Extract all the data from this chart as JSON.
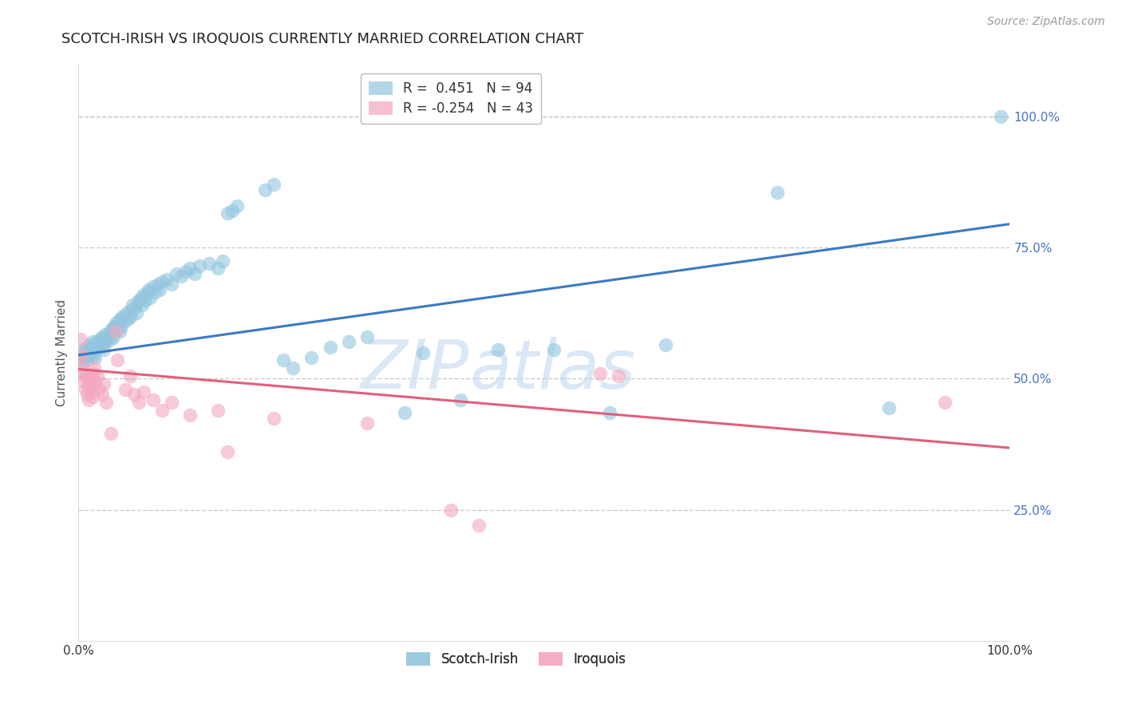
{
  "title": "SCOTCH-IRISH VS IROQUOIS CURRENTLY MARRIED CORRELATION CHART",
  "source": "Source: ZipAtlas.com",
  "ylabel": "Currently Married",
  "watermark_zip": "ZIP",
  "watermark_atlas": "atlas",
  "xlim": [
    0,
    1
  ],
  "ylim": [
    0,
    1.1
  ],
  "y_ticks": [
    0.25,
    0.5,
    0.75,
    1.0
  ],
  "y_tick_labels": [
    "25.0%",
    "50.0%",
    "75.0%",
    "100.0%"
  ],
  "blue_color": "#92c5de",
  "pink_color": "#f4a6c0",
  "blue_line_color": "#3b79c3",
  "pink_line_color": "#e0607e",
  "blue_line_y0": 0.545,
  "blue_line_y1": 0.795,
  "pink_line_y0": 0.518,
  "pink_line_y1": 0.368,
  "R_blue": 0.451,
  "N_blue": 94,
  "R_pink": -0.254,
  "N_pink": 43,
  "legend_blue_label": "Scotch-Irish",
  "legend_pink_label": "Iroquois",
  "blue_scatter": [
    [
      0.002,
      0.535
    ],
    [
      0.003,
      0.545
    ],
    [
      0.004,
      0.53
    ],
    [
      0.005,
      0.555
    ],
    [
      0.006,
      0.54
    ],
    [
      0.007,
      0.55
    ],
    [
      0.008,
      0.56
    ],
    [
      0.009,
      0.535
    ],
    [
      0.01,
      0.545
    ],
    [
      0.011,
      0.555
    ],
    [
      0.012,
      0.565
    ],
    [
      0.013,
      0.55
    ],
    [
      0.014,
      0.56
    ],
    [
      0.015,
      0.57
    ],
    [
      0.016,
      0.545
    ],
    [
      0.017,
      0.555
    ],
    [
      0.018,
      0.54
    ],
    [
      0.019,
      0.56
    ],
    [
      0.02,
      0.57
    ],
    [
      0.022,
      0.565
    ],
    [
      0.023,
      0.575
    ],
    [
      0.024,
      0.56
    ],
    [
      0.025,
      0.58
    ],
    [
      0.026,
      0.57
    ],
    [
      0.027,
      0.555
    ],
    [
      0.028,
      0.575
    ],
    [
      0.029,
      0.585
    ],
    [
      0.03,
      0.57
    ],
    [
      0.032,
      0.58
    ],
    [
      0.034,
      0.59
    ],
    [
      0.035,
      0.575
    ],
    [
      0.036,
      0.595
    ],
    [
      0.037,
      0.58
    ],
    [
      0.038,
      0.6
    ],
    [
      0.04,
      0.605
    ],
    [
      0.042,
      0.595
    ],
    [
      0.043,
      0.61
    ],
    [
      0.044,
      0.59
    ],
    [
      0.045,
      0.615
    ],
    [
      0.046,
      0.6
    ],
    [
      0.048,
      0.62
    ],
    [
      0.05,
      0.61
    ],
    [
      0.052,
      0.625
    ],
    [
      0.054,
      0.615
    ],
    [
      0.055,
      0.63
    ],
    [
      0.056,
      0.62
    ],
    [
      0.058,
      0.64
    ],
    [
      0.06,
      0.635
    ],
    [
      0.062,
      0.625
    ],
    [
      0.064,
      0.645
    ],
    [
      0.065,
      0.65
    ],
    [
      0.067,
      0.655
    ],
    [
      0.068,
      0.64
    ],
    [
      0.07,
      0.66
    ],
    [
      0.072,
      0.65
    ],
    [
      0.074,
      0.665
    ],
    [
      0.075,
      0.67
    ],
    [
      0.077,
      0.655
    ],
    [
      0.08,
      0.675
    ],
    [
      0.082,
      0.665
    ],
    [
      0.085,
      0.68
    ],
    [
      0.087,
      0.67
    ],
    [
      0.09,
      0.685
    ],
    [
      0.095,
      0.69
    ],
    [
      0.1,
      0.68
    ],
    [
      0.105,
      0.7
    ],
    [
      0.11,
      0.695
    ],
    [
      0.115,
      0.705
    ],
    [
      0.12,
      0.71
    ],
    [
      0.125,
      0.7
    ],
    [
      0.13,
      0.715
    ],
    [
      0.14,
      0.72
    ],
    [
      0.15,
      0.71
    ],
    [
      0.155,
      0.725
    ],
    [
      0.16,
      0.815
    ],
    [
      0.165,
      0.82
    ],
    [
      0.17,
      0.83
    ],
    [
      0.2,
      0.86
    ],
    [
      0.21,
      0.87
    ],
    [
      0.22,
      0.535
    ],
    [
      0.23,
      0.52
    ],
    [
      0.25,
      0.54
    ],
    [
      0.27,
      0.56
    ],
    [
      0.29,
      0.57
    ],
    [
      0.31,
      0.58
    ],
    [
      0.35,
      0.435
    ],
    [
      0.37,
      0.55
    ],
    [
      0.41,
      0.46
    ],
    [
      0.45,
      0.555
    ],
    [
      0.51,
      0.555
    ],
    [
      0.57,
      0.435
    ],
    [
      0.63,
      0.565
    ],
    [
      0.75,
      0.855
    ],
    [
      0.87,
      0.445
    ],
    [
      0.99,
      1.0
    ]
  ],
  "pink_scatter": [
    [
      0.002,
      0.575
    ],
    [
      0.003,
      0.545
    ],
    [
      0.004,
      0.52
    ],
    [
      0.005,
      0.51
    ],
    [
      0.006,
      0.495
    ],
    [
      0.007,
      0.48
    ],
    [
      0.008,
      0.505
    ],
    [
      0.009,
      0.47
    ],
    [
      0.01,
      0.49
    ],
    [
      0.011,
      0.46
    ],
    [
      0.012,
      0.505
    ],
    [
      0.013,
      0.475
    ],
    [
      0.014,
      0.49
    ],
    [
      0.015,
      0.465
    ],
    [
      0.016,
      0.51
    ],
    [
      0.017,
      0.52
    ],
    [
      0.018,
      0.495
    ],
    [
      0.02,
      0.505
    ],
    [
      0.022,
      0.48
    ],
    [
      0.025,
      0.47
    ],
    [
      0.027,
      0.49
    ],
    [
      0.03,
      0.455
    ],
    [
      0.035,
      0.395
    ],
    [
      0.04,
      0.59
    ],
    [
      0.042,
      0.535
    ],
    [
      0.05,
      0.48
    ],
    [
      0.055,
      0.505
    ],
    [
      0.06,
      0.47
    ],
    [
      0.065,
      0.455
    ],
    [
      0.07,
      0.475
    ],
    [
      0.08,
      0.46
    ],
    [
      0.09,
      0.44
    ],
    [
      0.1,
      0.455
    ],
    [
      0.12,
      0.43
    ],
    [
      0.15,
      0.44
    ],
    [
      0.16,
      0.36
    ],
    [
      0.21,
      0.425
    ],
    [
      0.31,
      0.415
    ],
    [
      0.4,
      0.25
    ],
    [
      0.43,
      0.22
    ],
    [
      0.56,
      0.51
    ],
    [
      0.58,
      0.505
    ],
    [
      0.93,
      0.455
    ]
  ],
  "title_fontsize": 13,
  "source_fontsize": 10,
  "axis_label_fontsize": 11,
  "tick_fontsize": 11,
  "legend_fontsize": 12,
  "watermark_fontsize_zip": 62,
  "watermark_fontsize_atlas": 62,
  "background_color": "#ffffff",
  "grid_color": "#cccccc",
  "tick_color": "#4472c4"
}
